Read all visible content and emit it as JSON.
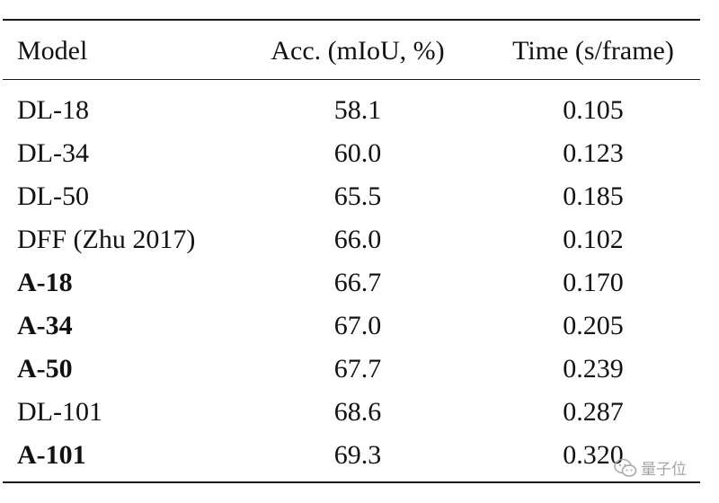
{
  "table": {
    "headers": {
      "model": "Model",
      "accuracy": "Acc. (mIoU, %)",
      "time": "Time (s/frame)"
    },
    "rows": [
      {
        "model": "DL-18",
        "accuracy": "58.1",
        "time": "0.105",
        "bold": false
      },
      {
        "model": "DL-34",
        "accuracy": "60.0",
        "time": "0.123",
        "bold": false
      },
      {
        "model": "DL-50",
        "accuracy": "65.5",
        "time": "0.185",
        "bold": false
      },
      {
        "model": "DFF (Zhu 2017)",
        "accuracy": "66.0",
        "time": "0.102",
        "bold": false
      },
      {
        "model": "A-18",
        "accuracy": "66.7",
        "time": "0.170",
        "bold": true
      },
      {
        "model": "A-34",
        "accuracy": "67.0",
        "time": "0.205",
        "bold": true
      },
      {
        "model": "A-50",
        "accuracy": "67.7",
        "time": "0.239",
        "bold": true
      },
      {
        "model": "DL-101",
        "accuracy": "68.6",
        "time": "0.287",
        "bold": false
      },
      {
        "model": "A-101",
        "accuracy": "69.3",
        "time": "0.320",
        "bold": true
      }
    ]
  },
  "watermark": {
    "text": "量子位",
    "icon": "wechat-icon"
  }
}
